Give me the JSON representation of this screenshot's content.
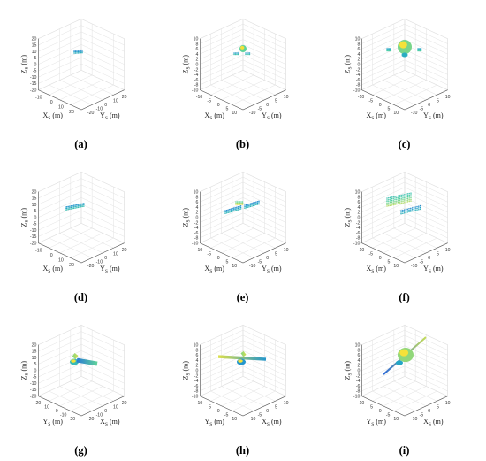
{
  "chart_data": [
    {
      "type": "scatter3d",
      "caption": "(a)",
      "view": "front",
      "xlabel": "X_S (m)",
      "ylabel": "Y_S (m)",
      "zlabel": "Z_S (m)",
      "xlim": [
        -20,
        20
      ],
      "ylim": [
        -20,
        20
      ],
      "zlim": [
        -20,
        20
      ],
      "xticks": [
        "-10",
        "0",
        "10",
        "20"
      ],
      "yticks": [
        "-20",
        "-10",
        "0",
        "10",
        "20"
      ],
      "zticks": [
        "20",
        "15",
        "10",
        "5",
        "0",
        "-5",
        "-10",
        "-15",
        "-20"
      ],
      "grid": true,
      "object": "bus-small",
      "colormap": [
        "#2c6bd9",
        "#21a4c8",
        "#4fd1a5",
        "#f5e13a"
      ]
    },
    {
      "type": "scatter3d",
      "caption": "(b)",
      "view": "front",
      "xlabel": "X_S (m)",
      "ylabel": "Y_S (m)",
      "zlabel": "Z_S (m)",
      "xlim": [
        -10,
        10
      ],
      "ylim": [
        -10,
        10
      ],
      "zlim": [
        -10,
        10
      ],
      "xticks": [
        "-10",
        "-5",
        "0",
        "5",
        "10"
      ],
      "yticks": [
        "-10",
        "-5",
        "0",
        "5",
        "10"
      ],
      "zticks": [
        "10",
        "8",
        "6",
        "4",
        "2",
        "0",
        "-2",
        "-4",
        "-6",
        "-8",
        "-10"
      ],
      "grid": true,
      "object": "sphere-small",
      "colormap": [
        "#2c6bd9",
        "#21a4c8",
        "#4fd1a5",
        "#f5e13a"
      ]
    },
    {
      "type": "scatter3d",
      "caption": "(c)",
      "view": "front",
      "xlabel": "X_S (m)",
      "ylabel": "Y_S (m)",
      "zlabel": "Z_S (m)",
      "xlim": [
        -10,
        10
      ],
      "ylim": [
        -10,
        10
      ],
      "zlim": [
        -10,
        10
      ],
      "xticks": [
        "-10",
        "-5",
        "0",
        "5",
        "10"
      ],
      "yticks": [
        "-10",
        "-5",
        "0",
        "5",
        "10"
      ],
      "zticks": [
        "10",
        "8",
        "6",
        "4",
        "2",
        "0",
        "-2",
        "-4",
        "-6",
        "-8",
        "-10"
      ],
      "grid": true,
      "object": "sphere-large",
      "colormap": [
        "#2c6bd9",
        "#21a4c8",
        "#4fd1a5",
        "#f5e13a"
      ]
    },
    {
      "type": "scatter3d",
      "caption": "(d)",
      "view": "front",
      "xlabel": "X_S (m)",
      "ylabel": "Y_S (m)",
      "zlabel": "Z_S (m)",
      "xlim": [
        -20,
        20
      ],
      "ylim": [
        -20,
        20
      ],
      "zlim": [
        -20,
        20
      ],
      "xticks": [
        "-10",
        "0",
        "10",
        "20"
      ],
      "yticks": [
        "-20",
        "-10",
        "0",
        "10",
        "20"
      ],
      "zticks": [
        "20",
        "15",
        "10",
        "5",
        "0",
        "-5",
        "-10",
        "-15",
        "-20"
      ],
      "grid": true,
      "object": "panels-small",
      "colormap": [
        "#2c6bd9",
        "#21a4c8",
        "#4fd1a5",
        "#f5e13a"
      ]
    },
    {
      "type": "scatter3d",
      "caption": "(e)",
      "view": "front",
      "xlabel": "X_S (m)",
      "ylabel": "Y_S (m)",
      "zlabel": "Z_S (m)",
      "xlim": [
        -10,
        10
      ],
      "ylim": [
        -10,
        10
      ],
      "zlim": [
        -10,
        10
      ],
      "xticks": [
        "-10",
        "-5",
        "0",
        "5",
        "10"
      ],
      "yticks": [
        "-10",
        "-5",
        "0",
        "5",
        "10"
      ],
      "zticks": [
        "10",
        "8",
        "6",
        "4",
        "2",
        "0",
        "-2",
        "-4",
        "-6",
        "-8",
        "-10"
      ],
      "grid": true,
      "object": "panels-mid",
      "colormap": [
        "#2c6bd9",
        "#21a4c8",
        "#4fd1a5",
        "#f5e13a"
      ]
    },
    {
      "type": "scatter3d",
      "caption": "(f)",
      "view": "front",
      "xlabel": "X_S (m)",
      "ylabel": "Y_S (m)",
      "zlabel": "Z_S (m)",
      "xlim": [
        -10,
        10
      ],
      "ylim": [
        -10,
        10
      ],
      "zlim": [
        -10,
        10
      ],
      "xticks": [
        "-10",
        "-5",
        "0",
        "5",
        "10"
      ],
      "yticks": [
        "-10",
        "-5",
        "0",
        "5",
        "10"
      ],
      "zticks": [
        "10",
        "8",
        "6",
        "4",
        "2",
        "0",
        "-2",
        "-4",
        "-6",
        "-8",
        "-10"
      ],
      "grid": true,
      "object": "panels-large",
      "colormap": [
        "#2c6bd9",
        "#21a4c8",
        "#4fd1a5",
        "#f5e13a"
      ]
    },
    {
      "type": "surface3d",
      "caption": "(g)",
      "view": "back",
      "xlabel": "X_S (m)",
      "ylabel": "Y_S (m)",
      "zlabel": "Z_S (m)",
      "xlim": [
        -20,
        20
      ],
      "ylim": [
        -20,
        20
      ],
      "zlim": [
        -20,
        20
      ],
      "xticks": [
        "-20",
        "-10",
        "0",
        "10",
        "20"
      ],
      "yticks": [
        "20",
        "10",
        "0",
        "-10",
        "-20"
      ],
      "zticks": [
        "20",
        "15",
        "10",
        "5",
        "0",
        "-5",
        "-10",
        "-15",
        "-20"
      ],
      "grid": true,
      "object": "model-small",
      "colormap": [
        "#2c6bd9",
        "#21a4c8",
        "#4fd1a5",
        "#f5e13a"
      ]
    },
    {
      "type": "surface3d",
      "caption": "(h)",
      "view": "back",
      "xlabel": "X_S (m)",
      "ylabel": "Y_S (m)",
      "zlabel": "Z_S (m)",
      "xlim": [
        -10,
        10
      ],
      "ylim": [
        -10,
        10
      ],
      "zlim": [
        -10,
        10
      ],
      "xticks": [
        "-10",
        "-5",
        "0",
        "5",
        "10"
      ],
      "yticks": [
        "10",
        "5",
        "0",
        "-5",
        "-10"
      ],
      "zticks": [
        "10",
        "8",
        "6",
        "4",
        "2",
        "0",
        "-2",
        "-4",
        "-6",
        "-8",
        "-10"
      ],
      "grid": true,
      "object": "model-mid",
      "colormap": [
        "#2c6bd9",
        "#21a4c8",
        "#4fd1a5",
        "#f5e13a"
      ]
    },
    {
      "type": "surface3d",
      "caption": "(i)",
      "view": "back",
      "xlabel": "X_S (m)",
      "ylabel": "Y_S (m)",
      "zlabel": "Z_S (m)",
      "xlim": [
        -10,
        10
      ],
      "ylim": [
        -10,
        10
      ],
      "zlim": [
        -10,
        10
      ],
      "xticks": [
        "-10",
        "-5",
        "0",
        "5",
        "10"
      ],
      "yticks": [
        "10",
        "5",
        "0",
        "-5",
        "-10"
      ],
      "zticks": [
        "10",
        "8",
        "6",
        "4",
        "2",
        "0",
        "-2",
        "-4",
        "-6",
        "-8",
        "-10"
      ],
      "grid": true,
      "object": "model-diag",
      "colormap": [
        "#2c6bd9",
        "#21a4c8",
        "#4fd1a5",
        "#f5e13a"
      ]
    }
  ]
}
